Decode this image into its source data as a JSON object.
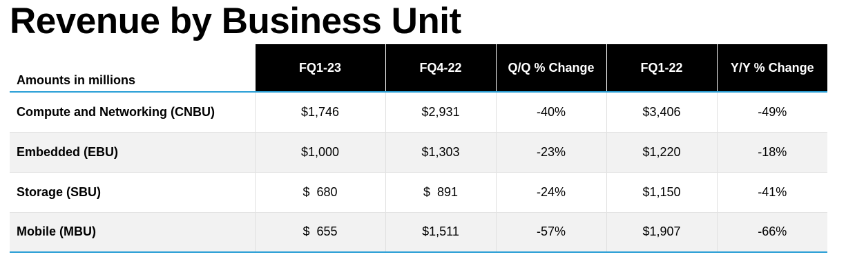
{
  "title": "Revenue by Business Unit",
  "table": {
    "corner_label": "Amounts in millions",
    "columns": [
      "FQ1-23",
      "FQ4-22",
      "Q/Q % Change",
      "FQ1-22",
      "Y/Y % Change"
    ],
    "rows": [
      {
        "label": "Compute and Networking (CNBU)",
        "values": [
          "$1,746",
          "$2,931",
          "-40%",
          "$3,406",
          "-49%"
        ]
      },
      {
        "label": "Embedded (EBU)",
        "values": [
          "$1,000",
          "$1,303",
          "-23%",
          "$1,220",
          "-18%"
        ]
      },
      {
        "label": "Storage (SBU)",
        "values": [
          "$  680",
          "$  891",
          "-24%",
          "$1,150",
          "-41%"
        ]
      },
      {
        "label": "Mobile (MBU)",
        "values": [
          "$  655",
          "$1,511",
          "-57%",
          "$1,907",
          "-66%"
        ]
      }
    ]
  },
  "colors": {
    "header_bg": "#000000",
    "accent_rule": "#2a9fd6",
    "stripe": "#f2f2f2"
  }
}
